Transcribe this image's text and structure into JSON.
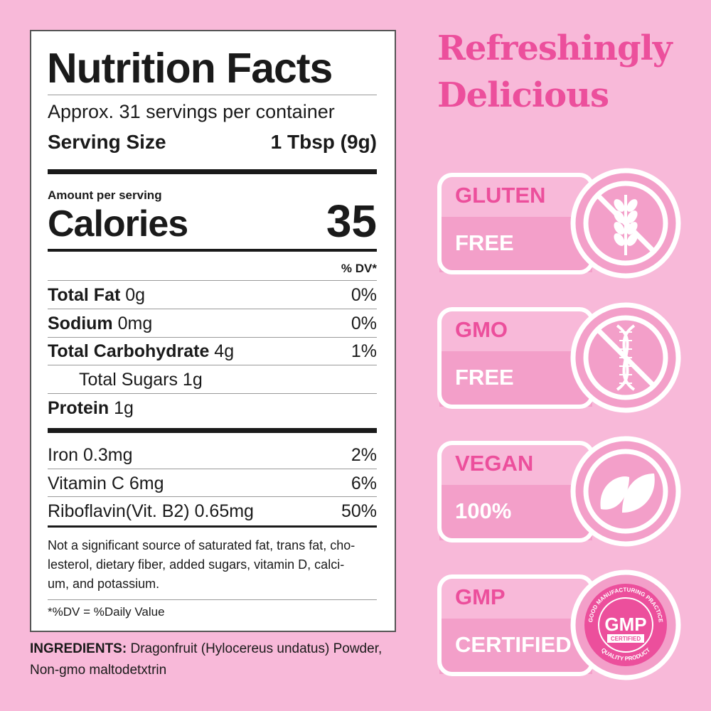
{
  "nutrition_facts": {
    "title": "Nutrition Facts",
    "servings": "Approx. 31 servings per container",
    "serving_size_label": "Serving Size",
    "serving_size": "1 Tbsp (9g)",
    "amount_per_serving": "Amount per serving",
    "calories_label": "Calories",
    "calories": 35,
    "dv_header": "% DV*",
    "nutrients": [
      {
        "name": "Total Fat",
        "amount": "0g",
        "dv": "0%"
      },
      {
        "name": "Sodium",
        "amount": "0mg",
        "dv": "0%"
      },
      {
        "name": "Total Carbohydrate",
        "amount": "4g",
        "dv": "1%"
      },
      {
        "name": "Total Sugars 1g"
      },
      {
        "name": "Protein",
        "amount": "1g"
      }
    ],
    "vitamins": [
      {
        "text": "Iron 0.3mg",
        "dv": "2%"
      },
      {
        "text": "Vitamin C 6mg",
        "dv": "6%"
      },
      {
        "text": "Riboflavin(Vit. B2) 0.65mg",
        "dv": "50%"
      }
    ],
    "footnote": [
      "Not a significant source of saturated fat, trans fat, cho-",
      "lesterol, dietary fiber, added sugars, vitamin D, calci-",
      "um, and potassium."
    ],
    "dv_note": "*%DV = %Daily Value"
  },
  "ingredients": {
    "label": "INGREDIENTS:",
    "lines": [
      "Dragonfruit (Hylocereus undatus) Powder,",
      "Non-gmo maltodetxtrin"
    ]
  },
  "heading": [
    "Refreshingly",
    "Delicious"
  ],
  "badges": [
    {
      "top": "GLUTEN",
      "bottom": "FREE"
    },
    {
      "top": "GMO",
      "bottom": "FREE"
    },
    {
      "top": "VEGAN",
      "bottom": "100%"
    },
    {
      "top": "GMP",
      "bottom": "CERTIFIED"
    }
  ],
  "seal": {
    "center": "GMP",
    "sub": "CERTIFIED",
    "arc_top": "GOOD MANUFACTURING PRACTICE",
    "arc_bottom": "QUALITY PRODUCT"
  }
}
